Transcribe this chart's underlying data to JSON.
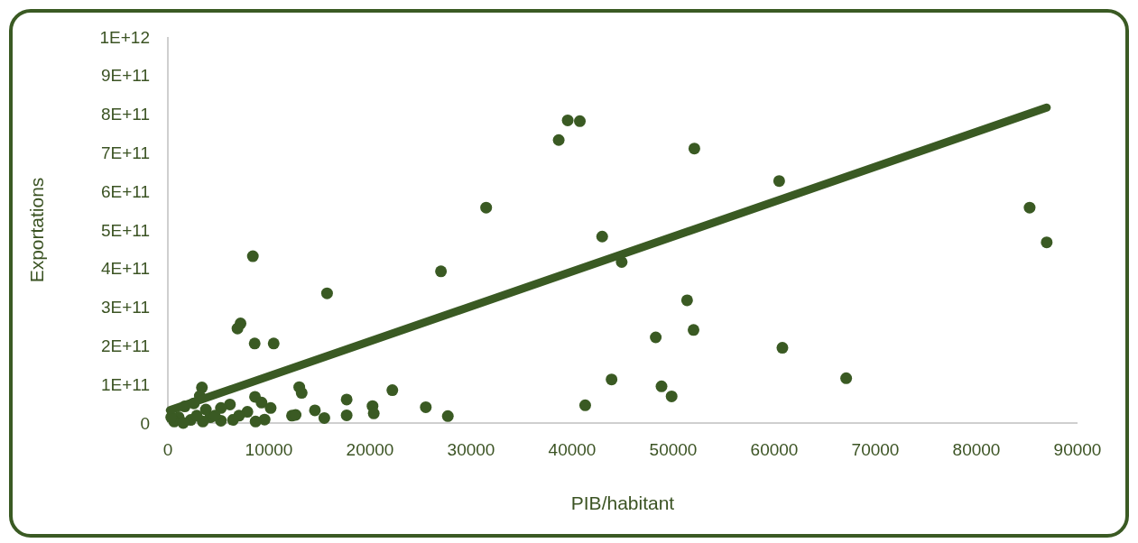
{
  "chart_data": {
    "type": "scatter",
    "xlabel": "PIB/habitant",
    "ylabel": "Exportations",
    "xlim": [
      0,
      90000
    ],
    "xticks": [
      0,
      10000,
      20000,
      30000,
      40000,
      50000,
      60000,
      70000,
      80000,
      90000
    ],
    "ylim": [
      0,
      1000000000000.0
    ],
    "yticks": [
      0,
      {
        "value": 100000000000.0,
        "label": "1E+11"
      },
      {
        "value": 200000000000.0,
        "label": "2E+11"
      },
      {
        "value": 300000000000.0,
        "label": "3E+11"
      },
      {
        "value": 400000000000.0,
        "label": "4E+11"
      },
      {
        "value": 500000000000.0,
        "label": "5E+11"
      },
      {
        "value": 600000000000.0,
        "label": "6E+11"
      },
      {
        "value": 700000000000.0,
        "label": "7E+11"
      },
      {
        "value": 800000000000.0,
        "label": "8E+11"
      },
      {
        "value": 900000000000.0,
        "label": "9E+11"
      },
      {
        "value": 1000000000000.0,
        "label": "1E+12"
      }
    ],
    "grid": false,
    "marker": "circle",
    "series": [
      {
        "color": "#3a5a23",
        "x": [
          39560,
          40760,
          38670,
          52090,
          60480,
          31490,
          85260,
          86950,
          42970,
          44900,
          51370,
          52010,
          48270,
          60800,
          67110,
          43900,
          48840,
          49840,
          41290,
          15750,
          7190,
          6890,
          8590,
          10470,
          8410,
          27020,
          3370,
          13000,
          13240,
          22210,
          17690,
          17690,
          20250,
          20370,
          25520,
          27700,
          14550,
          15480,
          12280,
          12640,
          8620,
          9270,
          10170,
          9570,
          8680,
          7870,
          6140,
          5250,
          7040,
          6440,
          5250,
          4200,
          3460,
          2260,
          1070,
          630,
          1520,
          3160,
          2570,
          1670,
          3760,
          4650,
          2860,
          330
        ],
        "values": [
          784000000000.0,
          782000000000.0,
          733000000000.0,
          711000000000.0,
          627000000000.0,
          558000000000.0,
          558000000000.0,
          468000000000.0,
          483000000000.0,
          417000000000.0,
          318000000000.0,
          241000000000.0,
          222000000000.0,
          195000000000.0,
          116000000000.0,
          113000000000.0,
          95000000000.0,
          69000000000.0,
          46000000000.0,
          336000000000.0,
          258000000000.0,
          245000000000.0,
          206000000000.0,
          206000000000.0,
          432000000000.0,
          393000000000.0,
          92000000000.0,
          93000000000.0,
          78000000000.0,
          85000000000.0,
          61000000000.0,
          20000000000.0,
          44000000000.0,
          25000000000.0,
          41000000000.0,
          18000000000.0,
          33000000000.0,
          13000000000.0,
          19000000000.0,
          21000000000.0,
          68000000000.0,
          53000000000.0,
          39000000000.0,
          9000000000.0,
          4000000000.0,
          29000000000.0,
          48000000000.0,
          39000000000.0,
          19000000000.0,
          8000000000.0,
          6000000000.0,
          15000000000.0,
          4000000000.0,
          8000000000.0,
          15000000000.0,
          4000000000.0,
          0.0,
          70000000000.0,
          51000000000.0,
          43000000000.0,
          35000000000.0,
          19000000000.0,
          19000000000.0,
          15000000000.0
        ]
      },
      {
        "type": "line",
        "color": "#3a5a23",
        "marker": "none",
        "x": [
          200,
          86950
        ],
        "values": [
          33000000000.0,
          817000000000.0
        ]
      }
    ]
  }
}
